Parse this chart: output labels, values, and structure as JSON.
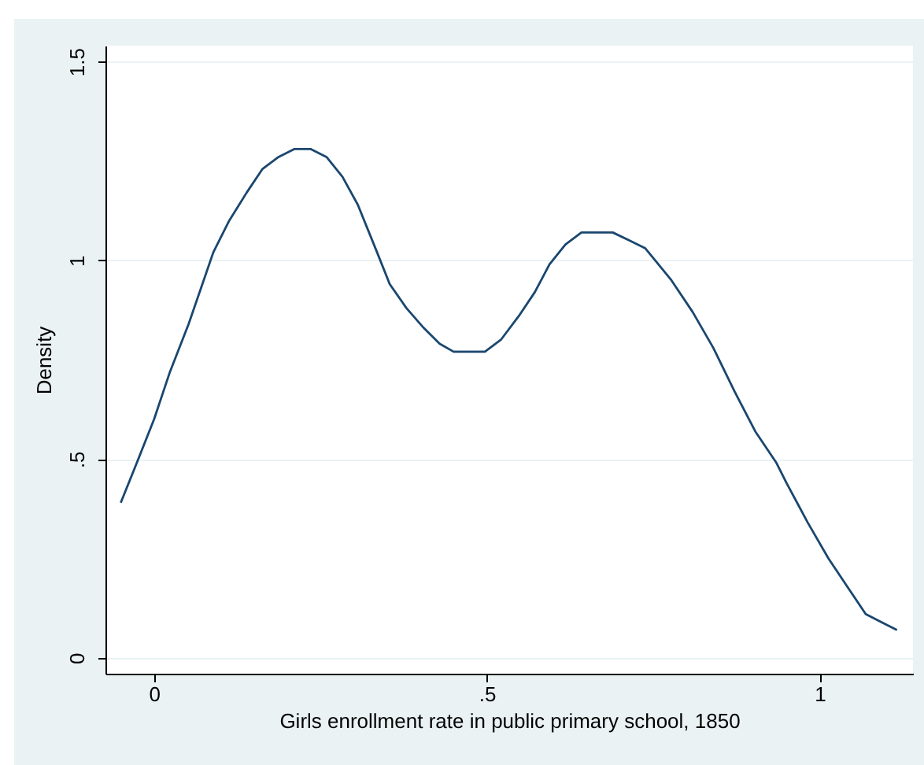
{
  "chart_data": {
    "type": "line",
    "xlabel": "Girls enrollment rate in public primary school, 1850",
    "ylabel": "Density",
    "x": [
      -0.05,
      -0.026,
      0,
      0.024,
      0.052,
      0.089,
      0.113,
      0.139,
      0.163,
      0.187,
      0.211,
      0.235,
      0.259,
      0.283,
      0.306,
      0.335,
      0.354,
      0.379,
      0.405,
      0.429,
      0.45,
      0.474,
      0.497,
      0.521,
      0.548,
      0.572,
      0.594,
      0.618,
      0.642,
      0.666,
      0.689,
      0.714,
      0.738,
      0.777,
      0.809,
      0.84,
      0.872,
      0.903,
      0.935,
      0.95,
      0.982,
      1.013,
      1.045,
      1.069,
      1.092,
      1.116
    ],
    "series": [
      {
        "color": "#1a476f",
        "values": [
          0.39,
          0.49,
          0.6,
          0.72,
          0.84,
          1.02,
          1.1,
          1.17,
          1.23,
          1.26,
          1.28,
          1.28,
          1.26,
          1.21,
          1.14,
          1.02,
          0.94,
          0.88,
          0.83,
          0.79,
          0.77,
          0.77,
          0.77,
          0.8,
          0.86,
          0.92,
          0.99,
          1.04,
          1.07,
          1.07,
          1.07,
          1.05,
          1.03,
          0.95,
          0.87,
          0.78,
          0.67,
          0.57,
          0.49,
          0.44,
          0.34,
          0.25,
          0.17,
          0.11,
          0.09,
          0.07
        ]
      }
    ],
    "xlim": [
      -0.073,
      1.14
    ],
    "ylim": [
      -0.04,
      1.54
    ],
    "xticks": [
      0,
      {
        "value": 0.5,
        "label": ".5"
      },
      1
    ],
    "yticks": [
      0,
      {
        "value": 0.5,
        "label": ".5"
      },
      1,
      1.5
    ],
    "grid": "y",
    "marker": "none",
    "line_style": "solid"
  }
}
